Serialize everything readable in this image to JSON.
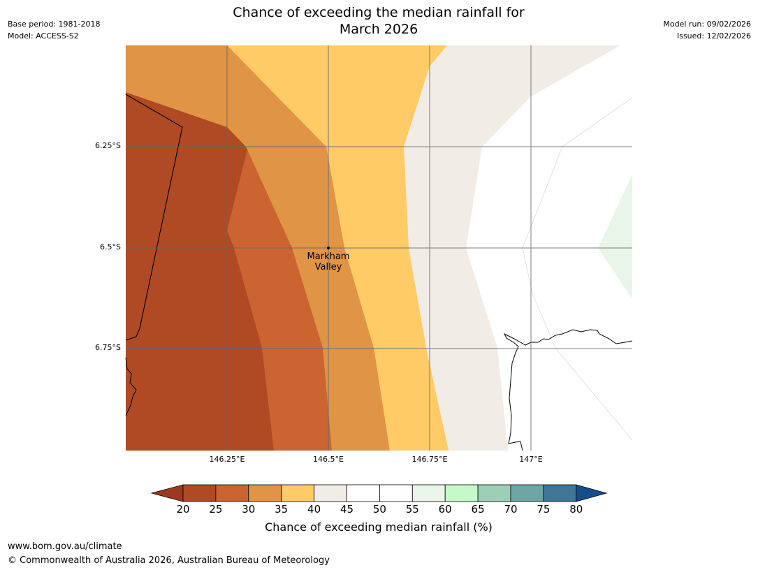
{
  "header": {
    "title_line1": "Chance of exceeding the median rainfall for",
    "title_line2": "March 2026",
    "base_period": "Base period: 1981-2018",
    "model": "Model: ACCESS-S2",
    "model_run": "Model run: 09/02/2026",
    "issued": "Issued: 12/02/2026"
  },
  "map": {
    "lat_labels": [
      "6.25°S",
      "6.5°S",
      "6.75°S"
    ],
    "lon_labels": [
      "146.25°E",
      "146.5°E",
      "146.75°E",
      "147°E"
    ],
    "place": {
      "name_line1": "Markham",
      "name_line2": "Valley"
    }
  },
  "colorbar": {
    "ticks": [
      "20",
      "25",
      "30",
      "35",
      "40",
      "45",
      "50",
      "55",
      "60",
      "65",
      "70",
      "75",
      "80"
    ],
    "colors": [
      "#9b3a20",
      "#b04a24",
      "#cc6432",
      "#e09445",
      "#fecb67",
      "#f1ece6",
      "#ffffff",
      "#ffffff",
      "#e8f5e8",
      "#c5f9c9",
      "#9dcfb6",
      "#6ea6a5",
      "#3f7697",
      "#144f8b"
    ],
    "label": "Chance of exceeding median rainfall (%)"
  },
  "footer": {
    "url": "www.bom.gov.au/climate",
    "copyright": "© Commonwealth of Australia 2026, Australian Bureau of Meteorology"
  }
}
